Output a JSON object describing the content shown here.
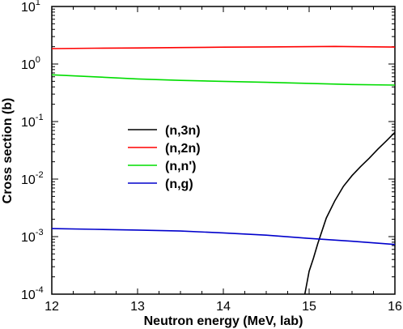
{
  "chart_data": {
    "type": "line",
    "xlabel": "Neutron energy (MeV, lab)",
    "ylabel": "Cross section (b)",
    "xlim": [
      12,
      16
    ],
    "ylim": [
      0.0001,
      10
    ],
    "y_scale": "log",
    "grid": false,
    "legend_position": "middle-left",
    "x_ticks": [
      "12",
      "13",
      "14",
      "15",
      "16"
    ],
    "y_ticks": [
      {
        "base": "10",
        "exp": "1",
        "value": 10
      },
      {
        "base": "10",
        "exp": "0",
        "value": 1
      },
      {
        "base": "10",
        "exp": "-1",
        "value": 0.1
      },
      {
        "base": "10",
        "exp": "-2",
        "value": 0.01
      },
      {
        "base": "10",
        "exp": "-3",
        "value": 0.001
      },
      {
        "base": "10",
        "exp": "-4",
        "value": 0.0001
      }
    ],
    "series": [
      {
        "name": "(n,3n)",
        "color": "#000000",
        "x": [
          14.95,
          15.0,
          15.05,
          15.1,
          15.2,
          15.3,
          15.4,
          15.5,
          15.6,
          15.7,
          15.8,
          15.9,
          16.0
        ],
        "y": [
          0.0001,
          0.00025,
          0.00042,
          0.00075,
          0.0021,
          0.0042,
          0.0075,
          0.0115,
          0.0165,
          0.023,
          0.033,
          0.046,
          0.065
        ]
      },
      {
        "name": "(n,2n)",
        "color": "#ff0000",
        "x": [
          12.0,
          12.5,
          13.0,
          13.5,
          14.0,
          14.5,
          15.0,
          15.3,
          15.5,
          16.0
        ],
        "y": [
          1.85,
          1.88,
          1.9,
          1.93,
          1.96,
          1.98,
          2.0,
          2.02,
          2.0,
          1.97
        ]
      },
      {
        "name": "(n,n')",
        "color": "#00dd00",
        "x": [
          12.0,
          12.5,
          13.0,
          13.5,
          14.0,
          14.5,
          15.0,
          15.5,
          16.0
        ],
        "y": [
          0.65,
          0.6,
          0.55,
          0.52,
          0.5,
          0.48,
          0.46,
          0.44,
          0.43
        ]
      },
      {
        "name": "(n,g)",
        "color": "#0000cc",
        "x": [
          12.0,
          12.5,
          13.0,
          13.5,
          14.0,
          14.5,
          15.0,
          15.5,
          16.0
        ],
        "y": [
          0.00138,
          0.00134,
          0.0013,
          0.00125,
          0.00116,
          0.00106,
          0.00093,
          0.00083,
          0.00073
        ]
      }
    ]
  }
}
